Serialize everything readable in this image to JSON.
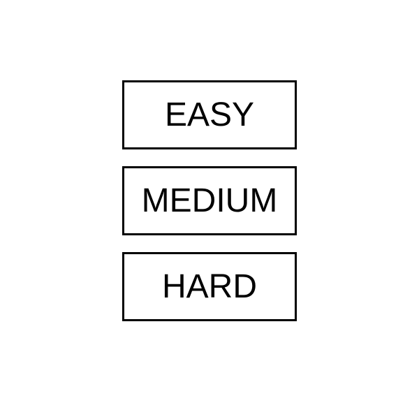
{
  "difficulty_menu": {
    "buttons": [
      {
        "label": "EASY"
      },
      {
        "label": "MEDIUM"
      },
      {
        "label": "HARD"
      }
    ]
  },
  "colors": {
    "background": "#ffffff",
    "border": "#000000",
    "text": "#000000"
  }
}
